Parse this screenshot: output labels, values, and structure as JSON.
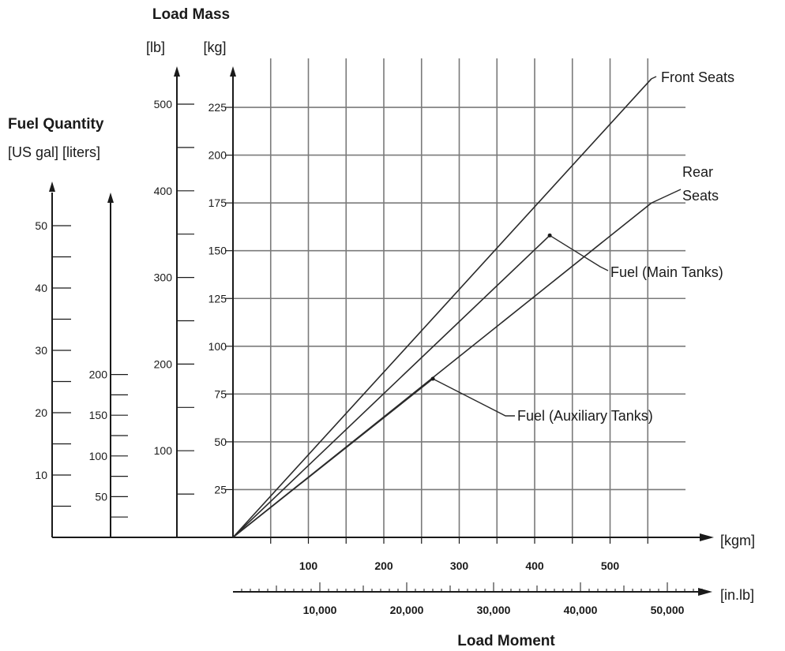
{
  "chart_data": {
    "type": "line",
    "title": "Load Mass",
    "load_mass_units": {
      "lb": "[lb]",
      "kg": "[kg]"
    },
    "fuel_quantity": {
      "title": "Fuel Quantity",
      "units_label": "[US gal] [liters]",
      "us_gal_ticks": [
        "10",
        "20",
        "30",
        "40",
        "50"
      ],
      "liters_ticks": [
        "50",
        "100",
        "150",
        "200"
      ]
    },
    "lb_ticks": [
      "100",
      "200",
      "300",
      "400",
      "500"
    ],
    "kg_ticks": [
      "25",
      "50",
      "75",
      "100",
      "125",
      "150",
      "175",
      "200",
      "225"
    ],
    "x_axis": {
      "title": "Load Moment",
      "kgm_unit": "[kgm]",
      "inlb_unit": "[in.lb]",
      "kgm_ticks": [
        "100",
        "200",
        "300",
        "400",
        "500"
      ],
      "inlb_ticks": [
        "10,000",
        "20,000",
        "30,000",
        "40,000",
        "50,000"
      ]
    },
    "xlim": [
      0,
      550
    ],
    "ylim": [
      0,
      240
    ],
    "grid": true,
    "series": [
      {
        "name": "Front Seats",
        "x": [
          0,
          555
        ],
        "y": [
          0,
          240
        ]
      },
      {
        "name": "Fuel (Main Tanks)",
        "x": [
          0,
          420
        ],
        "y": [
          0,
          158
        ]
      },
      {
        "name": "Rear Seats",
        "x": [
          0,
          555
        ],
        "y": [
          0,
          175
        ]
      },
      {
        "name": "Fuel (Auxiliary Tanks)",
        "x": [
          0,
          265
        ],
        "y": [
          0,
          83
        ]
      }
    ],
    "annotations": {
      "front_seats": "Front Seats",
      "rear_line1": "Rear",
      "rear_line2": "Seats",
      "fuel_main": "Fuel (Main Tanks)",
      "fuel_aux": "Fuel (Auxiliary Tanks)"
    }
  }
}
